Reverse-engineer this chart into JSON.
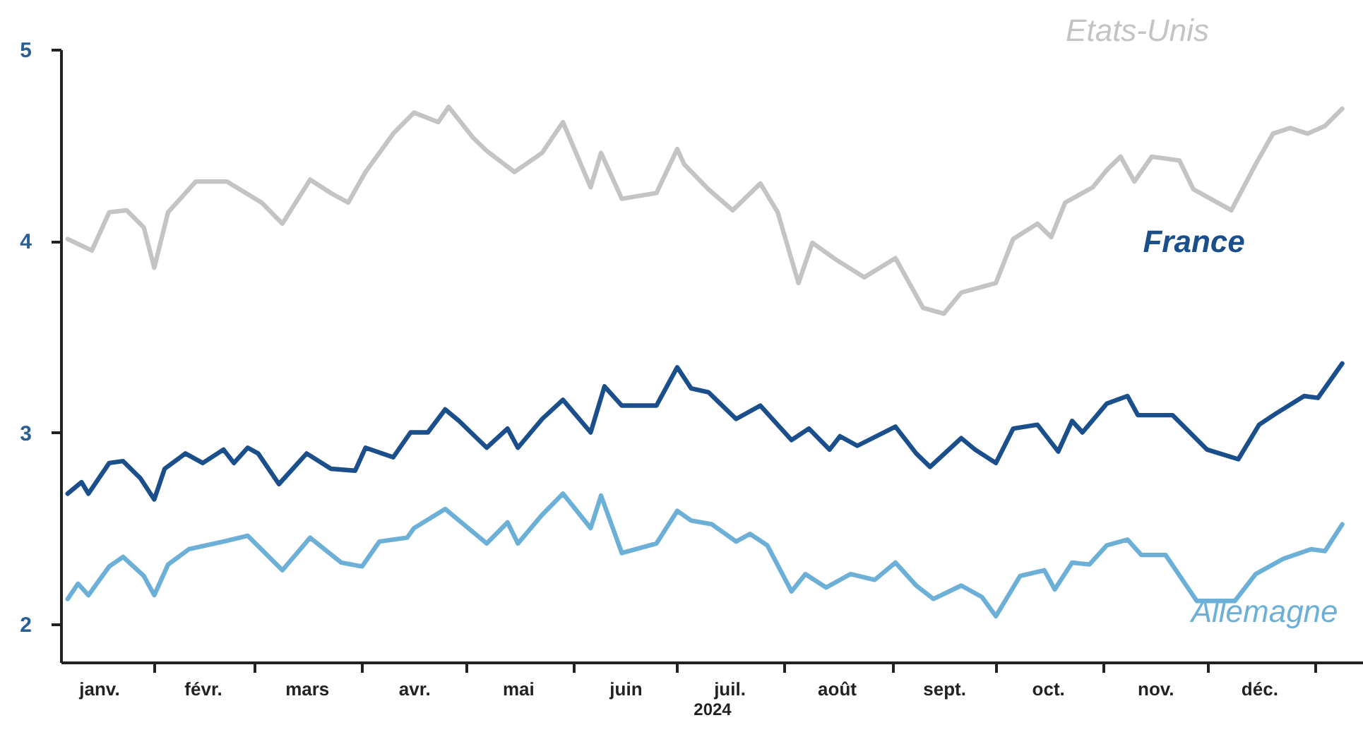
{
  "chart_data": {
    "type": "line",
    "xlabel": "2024",
    "xlim": [
      "2024-01-05",
      "2025-01-15"
    ],
    "ylim": [
      1.8,
      5
    ],
    "yticks": [
      2,
      3,
      4,
      5
    ],
    "xticks": [
      {
        "value": "2024-01-16",
        "label": "janv."
      },
      {
        "value": "2024-02-01",
        "label": null
      },
      {
        "value": "2024-02-15",
        "label": "févr."
      },
      {
        "value": "2024-03-01",
        "label": null
      },
      {
        "value": "2024-03-16",
        "label": "mars"
      },
      {
        "value": "2024-04-01",
        "label": null
      },
      {
        "value": "2024-04-16",
        "label": "avr."
      },
      {
        "value": "2024-05-01",
        "label": null
      },
      {
        "value": "2024-05-16",
        "label": "mai"
      },
      {
        "value": "2024-06-01",
        "label": null
      },
      {
        "value": "2024-06-16",
        "label": "juin"
      },
      {
        "value": "2024-07-01",
        "label": null
      },
      {
        "value": "2024-07-16",
        "label": "juil."
      },
      {
        "value": "2024-08-01",
        "label": null
      },
      {
        "value": "2024-08-16",
        "label": "août"
      },
      {
        "value": "2024-09-01",
        "label": null
      },
      {
        "value": "2024-09-16",
        "label": "sept."
      },
      {
        "value": "2024-10-01",
        "label": null
      },
      {
        "value": "2024-10-16",
        "label": "oct."
      },
      {
        "value": "2024-11-01",
        "label": null
      },
      {
        "value": "2024-11-16",
        "label": "nov."
      },
      {
        "value": "2024-12-01",
        "label": null
      },
      {
        "value": "2024-12-16",
        "label": "déc."
      },
      {
        "value": "2025-01-01",
        "label": null
      }
    ],
    "grid": false,
    "legend": false,
    "line_style": "solid",
    "series": [
      {
        "name": "Etats-Unis",
        "color": "#c4c4c4",
        "x": [
          "2024-01-07",
          "2024-01-14",
          "2024-01-19",
          "2024-01-24",
          "2024-01-29",
          "2024-02-01",
          "2024-02-05",
          "2024-02-13",
          "2024-02-22",
          "2024-03-03",
          "2024-03-09",
          "2024-03-17",
          "2024-03-23",
          "2024-03-28",
          "2024-04-02",
          "2024-04-10",
          "2024-04-16",
          "2024-04-23",
          "2024-04-26",
          "2024-05-03",
          "2024-05-07",
          "2024-05-15",
          "2024-05-23",
          "2024-05-29",
          "2024-06-06",
          "2024-06-09",
          "2024-06-15",
          "2024-06-25",
          "2024-07-01",
          "2024-07-03",
          "2024-07-10",
          "2024-07-17",
          "2024-07-25",
          "2024-07-30",
          "2024-08-05",
          "2024-08-09",
          "2024-08-16",
          "2024-08-24",
          "2024-09-02",
          "2024-09-10",
          "2024-09-16",
          "2024-09-21",
          "2024-10-01",
          "2024-10-06",
          "2024-10-13",
          "2024-10-17",
          "2024-10-21",
          "2024-10-29",
          "2024-11-02",
          "2024-11-06",
          "2024-11-10",
          "2024-11-15",
          "2024-11-23",
          "2024-11-27",
          "2024-12-02",
          "2024-12-08",
          "2024-12-15",
          "2024-12-20",
          "2024-12-25",
          "2024-12-30",
          "2025-01-04",
          "2025-01-09"
        ],
        "values": [
          4.01,
          3.95,
          4.15,
          4.16,
          4.07,
          3.86,
          4.15,
          4.31,
          4.31,
          4.2,
          4.09,
          4.32,
          4.25,
          4.2,
          4.36,
          4.56,
          4.67,
          4.62,
          4.7,
          4.54,
          4.47,
          4.36,
          4.46,
          4.62,
          4.28,
          4.46,
          4.22,
          4.25,
          4.48,
          4.4,
          4.27,
          4.16,
          4.3,
          4.15,
          3.78,
          3.99,
          3.9,
          3.81,
          3.91,
          3.65,
          3.62,
          3.73,
          3.78,
          4.01,
          4.09,
          4.02,
          4.2,
          4.28,
          4.37,
          4.44,
          4.31,
          4.44,
          4.42,
          4.27,
          4.22,
          4.16,
          4.4,
          4.56,
          4.59,
          4.56,
          4.6,
          4.69
        ]
      },
      {
        "name": "France",
        "color": "#1b4f8c",
        "x": [
          "2024-01-07",
          "2024-01-11",
          "2024-01-13",
          "2024-01-19",
          "2024-01-23",
          "2024-01-28",
          "2024-02-01",
          "2024-02-04",
          "2024-02-10",
          "2024-02-15",
          "2024-02-21",
          "2024-02-24",
          "2024-02-28",
          "2024-03-02",
          "2024-03-08",
          "2024-03-16",
          "2024-03-23",
          "2024-03-30",
          "2024-04-02",
          "2024-04-10",
          "2024-04-15",
          "2024-04-20",
          "2024-04-25",
          "2024-04-29",
          "2024-05-07",
          "2024-05-13",
          "2024-05-16",
          "2024-05-23",
          "2024-05-29",
          "2024-06-06",
          "2024-06-10",
          "2024-06-15",
          "2024-06-25",
          "2024-07-01",
          "2024-07-05",
          "2024-07-10",
          "2024-07-18",
          "2024-07-25",
          "2024-08-03",
          "2024-08-08",
          "2024-08-14",
          "2024-08-17",
          "2024-08-22",
          "2024-09-02",
          "2024-09-08",
          "2024-09-12",
          "2024-09-21",
          "2024-09-25",
          "2024-10-01",
          "2024-10-06",
          "2024-10-13",
          "2024-10-19",
          "2024-10-23",
          "2024-10-26",
          "2024-11-02",
          "2024-11-08",
          "2024-11-11",
          "2024-11-21",
          "2024-12-01",
          "2024-12-10",
          "2024-12-16",
          "2024-12-21",
          "2024-12-29",
          "2025-01-02",
          "2025-01-09"
        ],
        "values": [
          2.68,
          2.74,
          2.68,
          2.84,
          2.85,
          2.76,
          2.65,
          2.81,
          2.89,
          2.84,
          2.91,
          2.84,
          2.92,
          2.89,
          2.73,
          2.89,
          2.81,
          2.8,
          2.92,
          2.87,
          3.0,
          3.0,
          3.12,
          3.06,
          2.92,
          3.02,
          2.92,
          3.07,
          3.17,
          3.0,
          3.24,
          3.14,
          3.14,
          3.34,
          3.23,
          3.21,
          3.07,
          3.14,
          2.96,
          3.02,
          2.91,
          2.98,
          2.93,
          3.03,
          2.89,
          2.82,
          2.97,
          2.91,
          2.84,
          3.02,
          3.04,
          2.9,
          3.06,
          3.0,
          3.15,
          3.19,
          3.09,
          3.09,
          2.91,
          2.86,
          3.04,
          3.1,
          3.19,
          3.18,
          3.36
        ]
      },
      {
        "name": "Allemagne",
        "color": "#6cb0d8",
        "x": [
          "2024-01-07",
          "2024-01-10",
          "2024-01-13",
          "2024-01-19",
          "2024-01-23",
          "2024-01-29",
          "2024-02-01",
          "2024-02-05",
          "2024-02-11",
          "2024-02-21",
          "2024-02-28",
          "2024-03-09",
          "2024-03-17",
          "2024-03-26",
          "2024-04-01",
          "2024-04-06",
          "2024-04-14",
          "2024-04-16",
          "2024-04-25",
          "2024-05-07",
          "2024-05-13",
          "2024-05-16",
          "2024-05-23",
          "2024-05-29",
          "2024-06-06",
          "2024-06-09",
          "2024-06-15",
          "2024-06-25",
          "2024-07-01",
          "2024-07-05",
          "2024-07-11",
          "2024-07-18",
          "2024-07-22",
          "2024-07-27",
          "2024-08-03",
          "2024-08-07",
          "2024-08-13",
          "2024-08-20",
          "2024-08-27",
          "2024-09-02",
          "2024-09-08",
          "2024-09-13",
          "2024-09-21",
          "2024-09-27",
          "2024-10-01",
          "2024-10-08",
          "2024-10-15",
          "2024-10-18",
          "2024-10-23",
          "2024-10-28",
          "2024-11-02",
          "2024-11-08",
          "2024-11-12",
          "2024-11-19",
          "2024-11-28",
          "2024-12-09",
          "2024-12-15",
          "2024-12-23",
          "2024-12-31",
          "2025-01-04",
          "2025-01-09"
        ],
        "values": [
          2.13,
          2.21,
          2.15,
          2.3,
          2.35,
          2.25,
          2.15,
          2.31,
          2.39,
          2.43,
          2.46,
          2.28,
          2.45,
          2.32,
          2.3,
          2.43,
          2.45,
          2.5,
          2.6,
          2.42,
          2.53,
          2.42,
          2.57,
          2.68,
          2.5,
          2.67,
          2.37,
          2.42,
          2.59,
          2.54,
          2.52,
          2.43,
          2.47,
          2.41,
          2.17,
          2.26,
          2.19,
          2.26,
          2.23,
          2.32,
          2.2,
          2.13,
          2.2,
          2.14,
          2.04,
          2.25,
          2.28,
          2.18,
          2.32,
          2.31,
          2.41,
          2.44,
          2.36,
          2.36,
          2.12,
          2.12,
          2.26,
          2.34,
          2.39,
          2.38,
          2.52
        ]
      }
    ]
  }
}
